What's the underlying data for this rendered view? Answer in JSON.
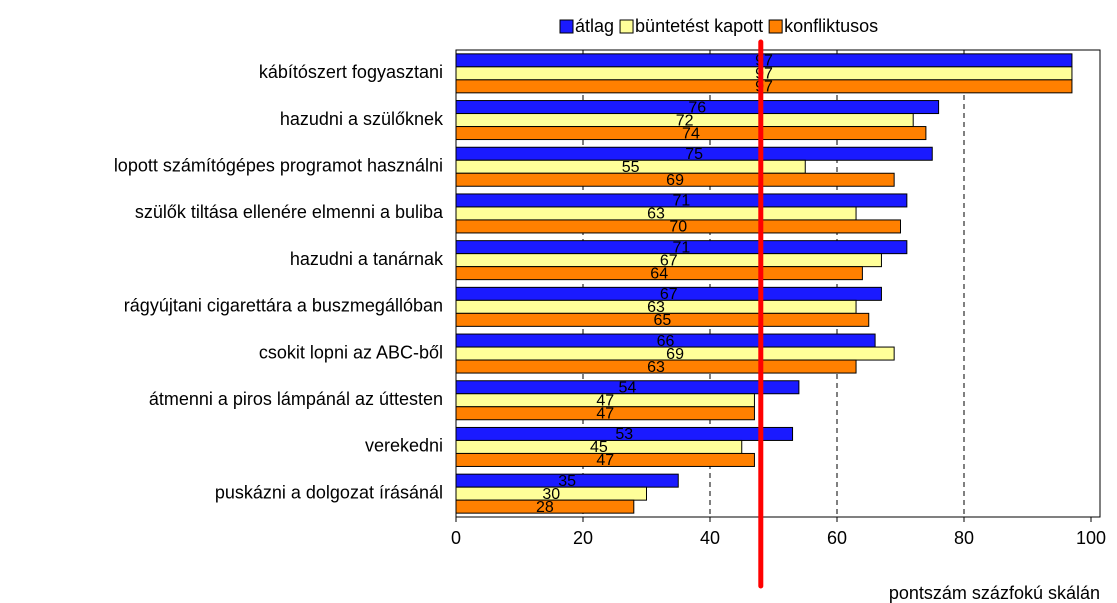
{
  "chart_data": {
    "type": "hbar",
    "x_label": "pontszám százfokú skálán",
    "categories": [
      "kábítószert fogyasztani",
      "hazudni a szülőknek",
      "lopott számítógépes programot használni",
      "szülők tiltása ellenére elmenni a buliba",
      "hazudni a tanárnak",
      "rágyújtani cigarettára a buszmegállóban",
      "csokit lopni az ABC-ből",
      "átmenni a piros lámpánál az úttesten",
      "verekedni",
      "puskázni a dolgozat írásánál"
    ],
    "series": [
      {
        "name": "átlag",
        "color": "#1a1aff",
        "values": [
          97,
          76,
          75,
          71,
          71,
          67,
          66,
          54,
          53,
          35
        ]
      },
      {
        "name": "büntetést kapott",
        "color": "#ffff99",
        "values": [
          97,
          72,
          55,
          63,
          67,
          63,
          69,
          47,
          45,
          30
        ]
      },
      {
        "name": "konfliktusos",
        "color": "#ff8000",
        "values": [
          97,
          74,
          69,
          70,
          64,
          65,
          63,
          47,
          47,
          28
        ]
      }
    ],
    "xlim": [
      0,
      100
    ],
    "xticks": [
      0,
      20,
      40,
      60,
      80,
      100
    ],
    "grid": true,
    "reference_value": 48,
    "reference_color": "#ff0000"
  }
}
